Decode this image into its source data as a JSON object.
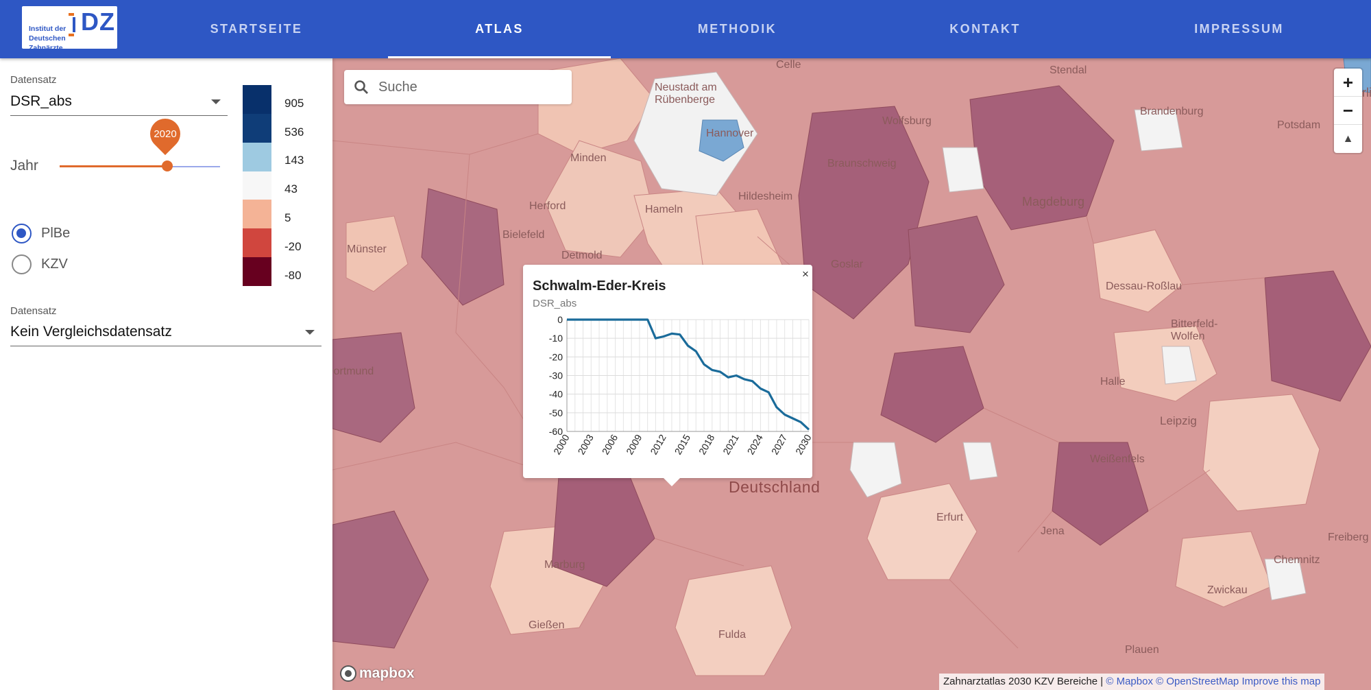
{
  "logo": {
    "text": "Institut der Deutschen Zahnärzte",
    "mark": "DZ"
  },
  "nav": [
    {
      "label": "STARTSEITE",
      "active": false
    },
    {
      "label": "ATLAS",
      "active": true
    },
    {
      "label": "METHODIK",
      "active": false
    },
    {
      "label": "KONTAKT",
      "active": false
    },
    {
      "label": "IMPRESSUM",
      "active": false
    }
  ],
  "panel": {
    "dataset_label": "Datensatz",
    "dataset_value": "DSR_abs",
    "year_label": "Jahr",
    "year_value": "2020",
    "year_slider_level": 0.67,
    "radios": [
      {
        "label": "PlBe",
        "checked": true
      },
      {
        "label": "KZV",
        "checked": false
      }
    ],
    "compare_label": "Datensatz",
    "compare_value": "Kein Vergleichsdatensatz",
    "legend": [
      {
        "value": "905",
        "color": "#08306b"
      },
      {
        "value": "536",
        "color": "#0f3d78"
      },
      {
        "value": "143",
        "color": "#9ecae1"
      },
      {
        "value": "43",
        "color": "#f7f7f7"
      },
      {
        "value": "5",
        "color": "#f4b396"
      },
      {
        "value": "-20",
        "color": "#d0463e"
      },
      {
        "value": "-80",
        "color": "#67001f"
      }
    ]
  },
  "map": {
    "search_placeholder": "Suche",
    "zoom_in": "+",
    "zoom_out": "−",
    "compass": "▲",
    "cities": [
      "Celle",
      "Stendal",
      "Neustadt am Rübenberge",
      "Hannover",
      "Wolfsburg",
      "Brandenburg",
      "Potsdam",
      "Minden",
      "Braunschweig",
      "Herford",
      "Hameln",
      "Hildesheim",
      "Magdeburg",
      "Bielefeld",
      "Münster",
      "Detmold",
      "Goslar",
      "Dessau-Roßlau",
      "Bitterfeld-Wolfen",
      "Dortmund",
      "Halle",
      "Leipzig",
      "Weißenfels",
      "Erfurt",
      "Jena",
      "Chemnitz",
      "Zwickau",
      "Marburg",
      "Gießen",
      "Fulda",
      "Plauen",
      "Freiberg",
      "Berlin"
    ],
    "country_label": "Deutschland",
    "mapbox_label": "mapbox",
    "attribution_prefix": "Zahnarztatlas 2030 KZV Bereiche |",
    "attribution_mapbox": "© Mapbox",
    "attribution_osm": "© OpenStreetMap",
    "attribution_improve": "Improve this map"
  },
  "popup": {
    "close": "×",
    "title": "Schwalm-Eder-Kreis",
    "subtitle": "DSR_abs",
    "chart_data": {
      "type": "line",
      "title": "Schwalm-Eder-Kreis",
      "ylabel": "DSR_abs",
      "x": [
        2000,
        2001,
        2002,
        2003,
        2004,
        2005,
        2006,
        2007,
        2008,
        2009,
        2010,
        2011,
        2012,
        2013,
        2014,
        2015,
        2016,
        2017,
        2018,
        2019,
        2020,
        2021,
        2022,
        2023,
        2024,
        2025,
        2026,
        2027,
        2028,
        2029,
        2030
      ],
      "series": [
        {
          "values": [
            0,
            0,
            0,
            0,
            0,
            0,
            0,
            0,
            0,
            0,
            0,
            -10,
            -9,
            -7.5,
            -8,
            -14,
            -17,
            -24,
            -27,
            -28,
            -31,
            -30,
            -32,
            -33,
            -37,
            -39,
            -47,
            -51,
            -53,
            -55,
            -59
          ]
        }
      ],
      "xticks": [
        2000,
        2003,
        2006,
        2009,
        2012,
        2015,
        2018,
        2021,
        2024,
        2027,
        2030
      ],
      "yticks": [
        0,
        -10,
        -20,
        -30,
        -40,
        -50,
        -60
      ],
      "ylim": [
        -60,
        0
      ],
      "xlim": [
        2000,
        2030
      ],
      "grid": true,
      "color": "#1a6b9a"
    }
  }
}
